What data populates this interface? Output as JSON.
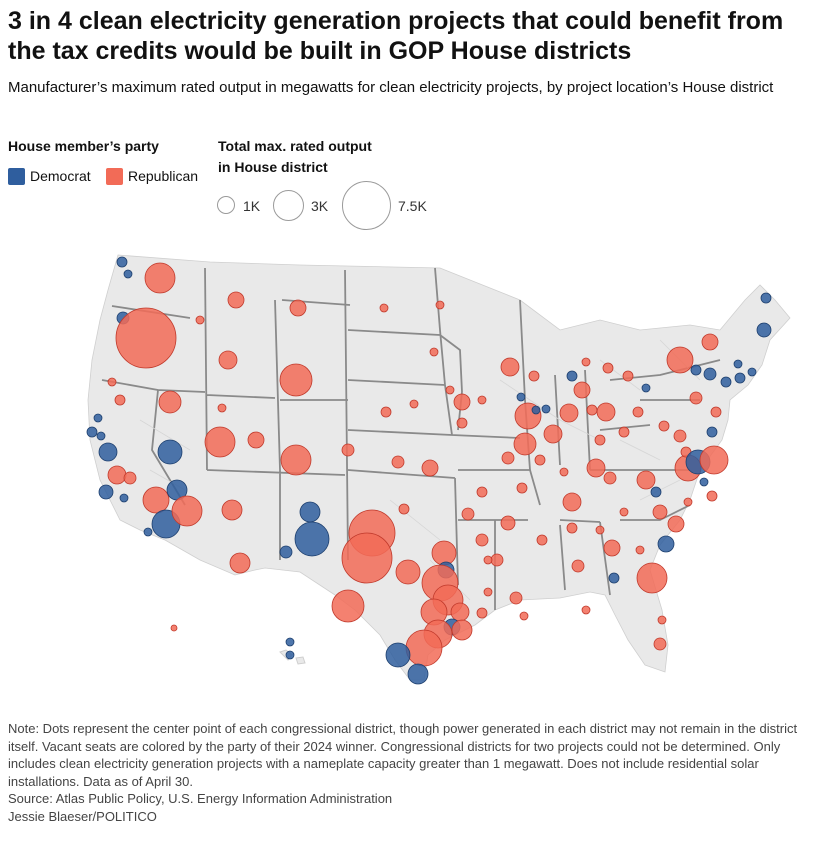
{
  "title": "3 in 4 clean electricity generation projects that could benefit from the tax credits would be built in GOP House districts",
  "subtitle": "Manufacturer’s maximum rated output in megawatts for clean electricity projects, by project location’s House district",
  "legend": {
    "party_heading": "House member’s party",
    "parties": [
      {
        "label": "Democrat",
        "color": "#2f5e9e"
      },
      {
        "label": "Republican",
        "color": "#f26b57"
      }
    ],
    "size_heading_line1": "Total max. rated output",
    "size_heading_line2": "in House district",
    "sizes": [
      {
        "label": "1K",
        "mw": 1000
      },
      {
        "label": "3K",
        "mw": 3000
      },
      {
        "label": "7.5K",
        "mw": 7500
      }
    ]
  },
  "colors": {
    "democrat": "#2f5e9e",
    "republican": "#f26b57",
    "land": "#e9e9e9",
    "state_border": "#8a8a8a",
    "district_border": "#d4d4d4"
  },
  "note": "Note: Dots represent the center point of each congressional district, though power generated in each district may not remain in the district itself. Vacant seats are colored by the party of their 2024 winner. Congressional districts for two projects could not be determined. Only includes clean electricity generation projects with a nameplate capacity greater than 1 megawatt. Does not include residential solar installations. Data as of April 30.",
  "source": "Source: Atlas Public Policy, U.S. Energy Information Administration",
  "credit": "Jessie Blaeser/POLITICO"
}
